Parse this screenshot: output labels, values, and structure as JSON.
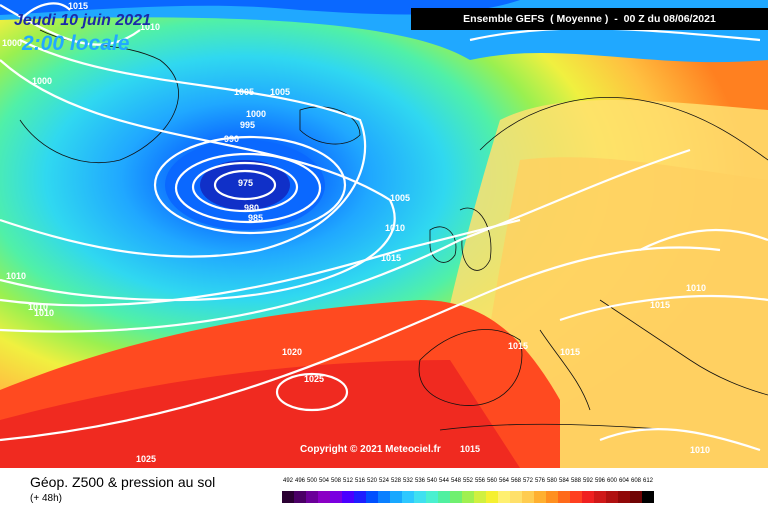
{
  "header": {
    "title": "Ensemble GEFS  ( Moyenne )  -  00 Z du 08/06/2021"
  },
  "valid": {
    "date": "Jeudi 10 juin 2021",
    "time": "2:00 locale"
  },
  "copyright": "Copyright © 2021 Meteociel.fr",
  "footer": {
    "title": "Géop. Z500 & pression au sol",
    "subtitle": "(+ 48h)"
  },
  "isobar_labels": [
    "1015",
    "1010",
    "1000",
    "1000",
    "1005",
    "1005",
    "1000",
    "995",
    "990",
    "975",
    "980",
    "985",
    "1005",
    "1010",
    "1015",
    "1010",
    "1010",
    "1010",
    "1020",
    "1025",
    "1025",
    "1015",
    "1015",
    "1015",
    "1010",
    "1015",
    "1010"
  ],
  "legend": {
    "values": [
      "492",
      "496",
      "500",
      "504",
      "508",
      "512",
      "516",
      "520",
      "524",
      "528",
      "532",
      "536",
      "540",
      "544",
      "548",
      "552",
      "556",
      "560",
      "564",
      "568",
      "572",
      "576",
      "580",
      "584",
      "588",
      "592",
      "596",
      "600",
      "604",
      "608",
      "612"
    ],
    "colors": [
      "#2b0033",
      "#4b0066",
      "#6b0099",
      "#8a00c4",
      "#7a00e0",
      "#4a00ff",
      "#1e1eff",
      "#0050ff",
      "#0a80ff",
      "#18a8ff",
      "#2ec8ff",
      "#40e0f0",
      "#4af0d0",
      "#50f0a0",
      "#70f070",
      "#a0f050",
      "#d0f040",
      "#f5f030",
      "#fff070",
      "#ffe06a",
      "#ffcc50",
      "#ffb030",
      "#ff9020",
      "#ff6a1a",
      "#ff4020",
      "#f02020",
      "#d01818",
      "#b01010",
      "#900808",
      "#700404",
      "#000000"
    ]
  }
}
